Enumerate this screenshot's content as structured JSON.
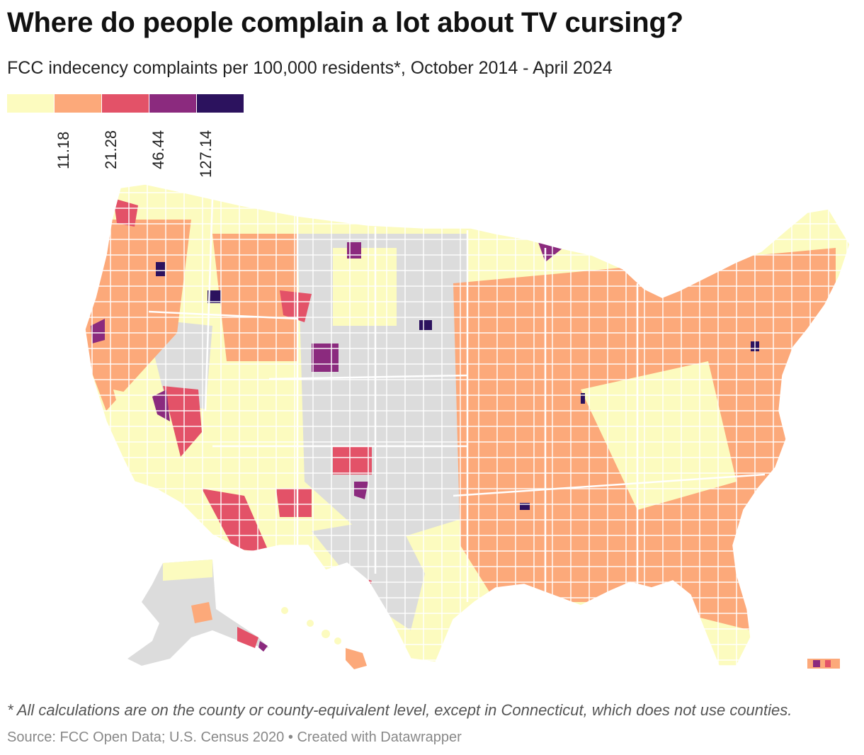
{
  "header": {
    "title": "Where do people complain a lot about TV cursing?",
    "subtitle": "FCC indecency complaints per 100,000 residents*, October 2014 - April 2024"
  },
  "legend": {
    "colors": [
      "#fcfbbf",
      "#fca97a",
      "#e35268",
      "#8b2a7e",
      "#2c125e"
    ],
    "ticks": [
      "11.18",
      "21.28",
      "46.44",
      "127.14"
    ]
  },
  "map": {
    "no_data_color": "#dcdcdc",
    "regions": [
      "contiguous-us",
      "alaska",
      "hawaii",
      "puerto-rico"
    ]
  },
  "footer": {
    "note": "* All calculations are on the county or county-equivalent level, except in Connecticut, which does not use counties.",
    "source": "Source: FCC Open Data; U.S. Census 2020",
    "separator": " • ",
    "credit": "Created with Datawrapper"
  }
}
